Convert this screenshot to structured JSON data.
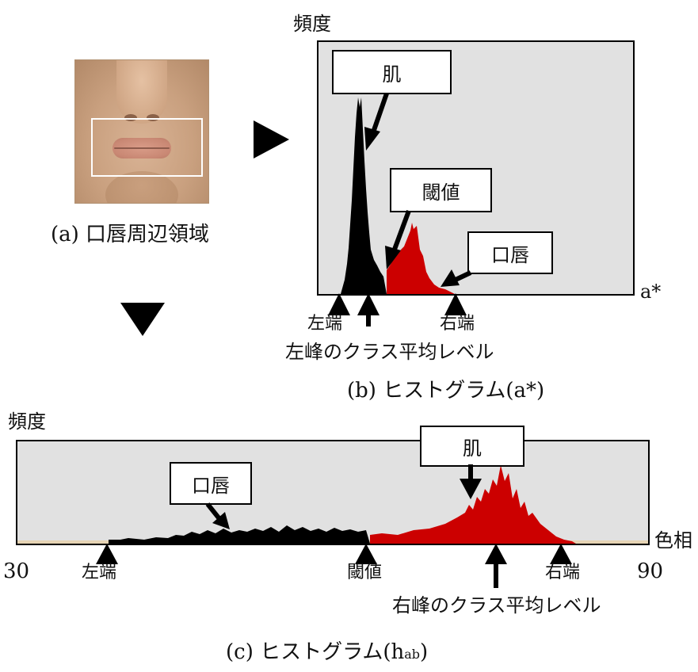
{
  "panel_a": {
    "caption": "(a) 口唇周辺領域"
  },
  "panel_b": {
    "y_label": "頻度",
    "x_label": "a*",
    "callouts": {
      "skin": "肌",
      "threshold": "閾値",
      "lips": "口唇"
    },
    "markers": {
      "left_end": "左端",
      "right_end": "右端",
      "left_peak_mean": "左峰のクラス平均レベル"
    },
    "caption": "(b) ヒストグラム(a*)"
  },
  "panel_c": {
    "y_label": "頻度",
    "x_label": "色相",
    "x_min": "30",
    "x_max": "90",
    "callouts": {
      "lips": "口唇",
      "skin": "肌"
    },
    "markers": {
      "left_end": "左端",
      "threshold": "閾値",
      "right_end": "右端",
      "right_peak_mean": "右峰のクラス平均レベル"
    },
    "caption_prefix": "(c) ヒストグラム(h",
    "caption_sub": "ab",
    "caption_suffix": ")"
  },
  "colors": {
    "plot_bg": "#e1e1e1",
    "skin_bars": "#000000",
    "lip_bars": "#cc0000",
    "baseline": "#e6d4b4"
  }
}
